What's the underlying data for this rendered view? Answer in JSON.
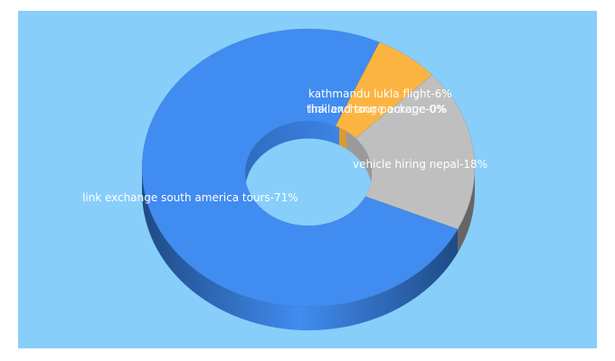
{
  "chart_data": {
    "type": "pie",
    "variant": "3d-donut",
    "title": "",
    "background": "#87cefa",
    "slices": [
      {
        "label": "link exchange south america tours",
        "value": 71,
        "display": "link exchange south america tours-71%",
        "color": "#418cf0",
        "side": "#2a5faa"
      },
      {
        "label": "kathmandu lukla flight",
        "value": 6,
        "display": "kathmandu lukla flight-6%",
        "color": "#fcb441",
        "side": "#d0912f"
      },
      {
        "label": "thailand tour package",
        "value": 0,
        "display": "thailand tour package-0%",
        "color": "#e0400a",
        "side": "#a8300a"
      },
      {
        "label": "link exchange europe",
        "value": 0,
        "display": "link exchange europe-0%",
        "color": "#056492",
        "side": "#034a6c"
      },
      {
        "label": "vehicle hiring nepal",
        "value": 18,
        "display": "vehicle hiring nepal-18%",
        "color": "#bfbfbf",
        "side": "#666666"
      }
    ]
  },
  "labels": {
    "main": "link exchange south america tours-71%",
    "kathmandu": "kathmandu lukla flight-6%",
    "thailand": "thailand tour package-0%",
    "europe": "link exchange europe-0%",
    "vehicle": "vehicle hiring nepal-18%"
  }
}
